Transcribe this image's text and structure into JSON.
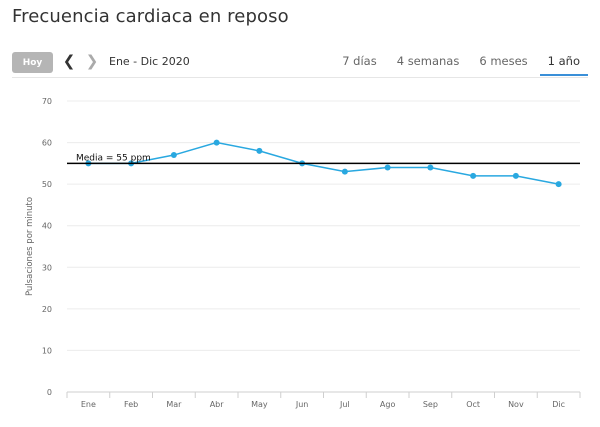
{
  "page": {
    "title": "Frecuencia cardiaca en reposo"
  },
  "toolbar": {
    "today_label": "Hoy",
    "range_label": "Ene - Dic 2020",
    "tabs": [
      {
        "label": "7 días",
        "active": false
      },
      {
        "label": "4 semanas",
        "active": false
      },
      {
        "label": "6 meses",
        "active": false
      },
      {
        "label": "1 año",
        "active": true
      }
    ]
  },
  "colors": {
    "line": "#29a8e0",
    "accent": "#3a8fd8",
    "today_button": "#b5b5b5",
    "average_line": "#000000"
  },
  "chart_data": {
    "type": "line",
    "ylabel": "Pulsaciones por minuto",
    "xlabel": "",
    "ylim": [
      0,
      70
    ],
    "yticks": [
      0,
      10,
      20,
      30,
      40,
      50,
      60,
      70
    ],
    "grid": true,
    "categories": [
      "Ene",
      "Feb",
      "Mar",
      "Abr",
      "May",
      "Jun",
      "Jul",
      "Ago",
      "Sep",
      "Oct",
      "Nov",
      "Dic"
    ],
    "series": [
      {
        "values": [
          55,
          55,
          57,
          60,
          58,
          55,
          53,
          54,
          54,
          52,
          52,
          50
        ]
      }
    ],
    "average": {
      "value": 55,
      "label": "Media = 55 ppm"
    }
  }
}
